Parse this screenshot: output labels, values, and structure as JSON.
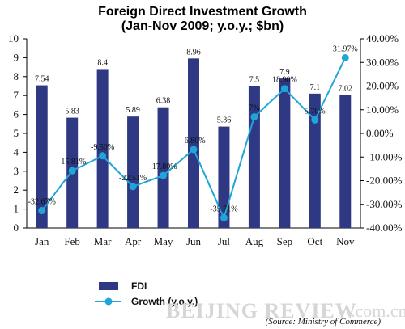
{
  "chart_data": {
    "type": "bar",
    "title": "Foreign Direct Investment Growth",
    "subtitle": "(Jan-Nov 2009; y.o.y.; $bn)",
    "categories": [
      "Jan",
      "Feb",
      "Mar",
      "Apr",
      "May",
      "Jun",
      "Jul",
      "Aug",
      "Sep",
      "Oct",
      "Nov"
    ],
    "series": [
      {
        "name": "FDI",
        "type": "bar",
        "axis": "left",
        "color": "#2e3883",
        "values": [
          7.54,
          5.83,
          8.4,
          5.89,
          6.38,
          8.96,
          5.36,
          7.5,
          7.9,
          7.1,
          7.02
        ],
        "labels": [
          "7.54",
          "5.83",
          "8.4",
          "5.89",
          "6.38",
          "8.96",
          "5.36",
          "7.5",
          "7.9",
          "7.1",
          "7.02"
        ]
      },
      {
        "name": "Growth (y.o.y.)",
        "type": "line",
        "axis": "right",
        "color": "#1fa5d8",
        "values": [
          -32.67,
          -15.81,
          -9.5,
          -22.51,
          -17.8,
          -6.8,
          -35.71,
          7,
          18.9,
          5.7,
          31.97
        ],
        "labels": [
          "-32.67%",
          "-15.81%",
          "-9.50%",
          "-22.51%",
          "-17.80%",
          "-6.80%",
          "-35.71%",
          "7%",
          "18.90%",
          "5.70%",
          "31.97%"
        ]
      }
    ],
    "y_left": {
      "min": 0,
      "max": 10,
      "ticks": [
        "0",
        "1",
        "2",
        "3",
        "4",
        "5",
        "6",
        "7",
        "8",
        "9",
        "10"
      ]
    },
    "y_right": {
      "min": -40,
      "max": 40,
      "ticks": [
        "-40.00%",
        "-30.00%",
        "-20.00%",
        "-10.00%",
        "0.00%",
        "10.00%",
        "20.00%",
        "30.00%",
        "40.00%"
      ]
    },
    "grid": false,
    "legend_position": "bottom-left"
  },
  "source_note": "(Source: Ministry of Commerce)",
  "watermark": {
    "brand": "BEIJING REVIEW",
    "domain": ".com.cn"
  }
}
